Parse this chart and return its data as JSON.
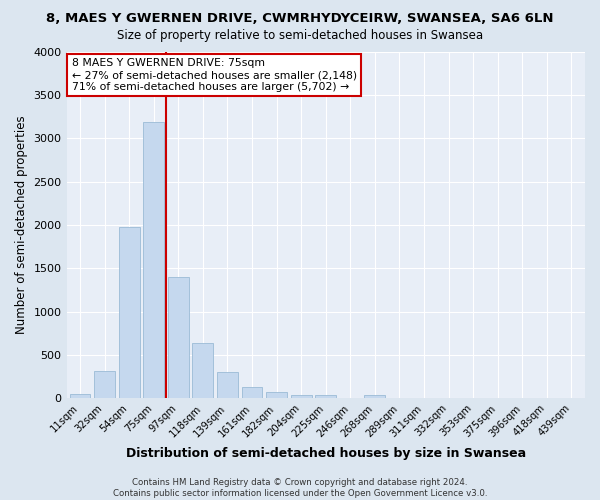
{
  "title": "8, MAES Y GWERNEN DRIVE, CWMRHYDYCEIRW, SWANSEA, SA6 6LN",
  "subtitle": "Size of property relative to semi-detached houses in Swansea",
  "xlabel": "Distribution of semi-detached houses by size in Swansea",
  "ylabel": "Number of semi-detached properties",
  "bar_labels": [
    "11sqm",
    "32sqm",
    "54sqm",
    "75sqm",
    "97sqm",
    "118sqm",
    "139sqm",
    "161sqm",
    "182sqm",
    "204sqm",
    "225sqm",
    "246sqm",
    "268sqm",
    "289sqm",
    "311sqm",
    "332sqm",
    "353sqm",
    "375sqm",
    "396sqm",
    "418sqm",
    "439sqm"
  ],
  "bar_values": [
    50,
    315,
    1980,
    3190,
    1400,
    640,
    305,
    130,
    70,
    40,
    40,
    0,
    40,
    0,
    0,
    0,
    0,
    0,
    0,
    0,
    0
  ],
  "bar_color": "#c5d8ee",
  "bar_edge_color": "#9bbbd6",
  "vline_color": "#cc0000",
  "ylim": [
    0,
    4000
  ],
  "yticks": [
    0,
    500,
    1000,
    1500,
    2000,
    2500,
    3000,
    3500,
    4000
  ],
  "annotation_title": "8 MAES Y GWERNEN DRIVE: 75sqm",
  "annotation_line1": "← 27% of semi-detached houses are smaller (2,148)",
  "annotation_line2": "71% of semi-detached houses are larger (5,702) →",
  "annotation_box_color": "#ffffff",
  "annotation_box_edgecolor": "#cc0000",
  "footer_line1": "Contains HM Land Registry data © Crown copyright and database right 2024.",
  "footer_line2": "Contains public sector information licensed under the Open Government Licence v3.0.",
  "bg_color": "#dce6f0",
  "plot_bg_color": "#e8eef7"
}
